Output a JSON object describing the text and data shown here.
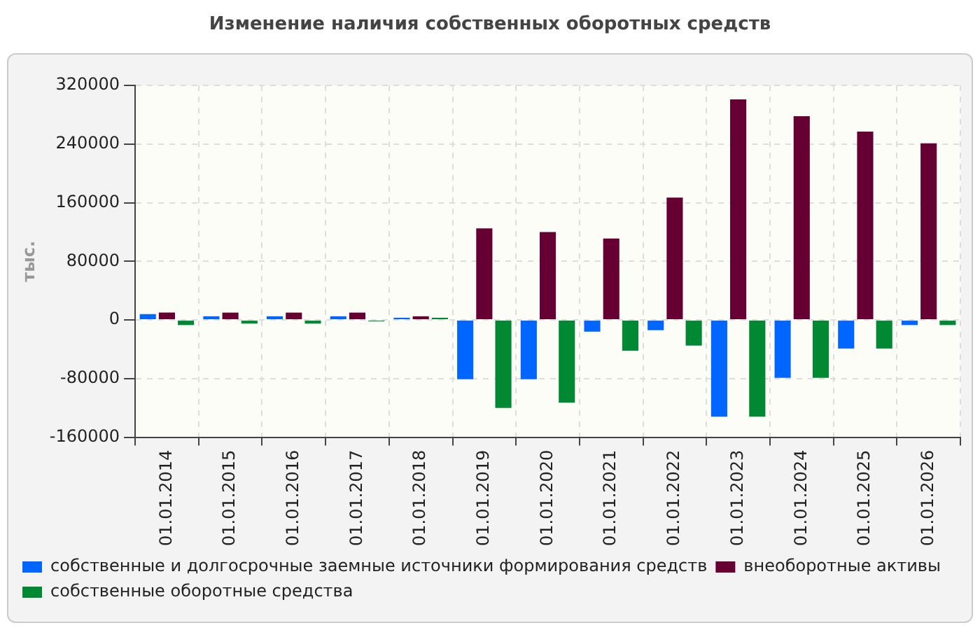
{
  "chart_data": {
    "type": "bar",
    "title": "Изменение наличия собственных оборотных средств",
    "ylabel": "тыс.",
    "categories": [
      "01.01.2014",
      "01.01.2015",
      "01.01.2016",
      "01.01.2017",
      "01.01.2018",
      "01.01.2019",
      "01.01.2020",
      "01.01.2021",
      "01.01.2022",
      "01.01.2023",
      "01.01.2024",
      "01.01.2025",
      "01.01.2026"
    ],
    "series": [
      {
        "name": "собственные и долгосрочные заемные источники формирования средств",
        "color": "#0066ff",
        "values": [
          8000,
          5000,
          5000,
          5000,
          3000,
          -81000,
          -81000,
          -16000,
          -14000,
          -132000,
          -79000,
          -39000,
          -7000
        ]
      },
      {
        "name": "внеоборотные активы",
        "color": "#660033",
        "values": [
          10000,
          10000,
          10000,
          10000,
          5000,
          125000,
          120000,
          111000,
          167000,
          301000,
          278000,
          257000,
          241000
        ]
      },
      {
        "name": "собственные оборотные средства",
        "color": "#008833",
        "values": [
          -7000,
          -5000,
          -5000,
          -2000,
          3000,
          -120000,
          -113000,
          -42000,
          -35000,
          -132000,
          -79000,
          -39000,
          -7000
        ]
      }
    ],
    "ylim": [
      -160000,
      320000
    ],
    "yticks": [
      -160000,
      -80000,
      0,
      80000,
      160000,
      240000,
      320000
    ],
    "grid": true,
    "legend": "bottom"
  }
}
